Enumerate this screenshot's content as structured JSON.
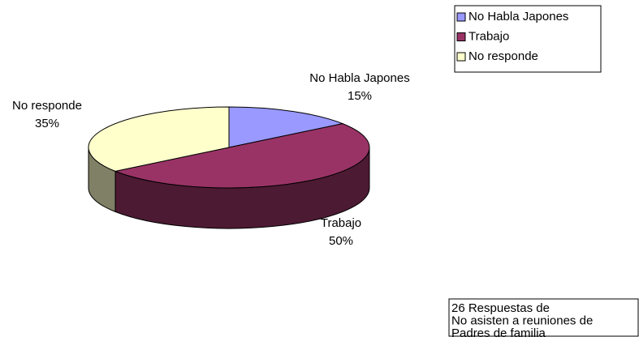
{
  "chart_data": {
    "type": "pie3d",
    "categories": [
      "No Habla Japones",
      "Trabajo",
      "No responde"
    ],
    "values": [
      15,
      50,
      35
    ],
    "value_labels": [
      "15%",
      "50%",
      "35%"
    ],
    "colors": [
      "#9999ff",
      "#993366",
      "#ffffcc"
    ],
    "legend": "top-right",
    "annotation": [
      "26 Respuestas de",
      "No asisten a reuniones de",
      "Padres de familia"
    ]
  }
}
